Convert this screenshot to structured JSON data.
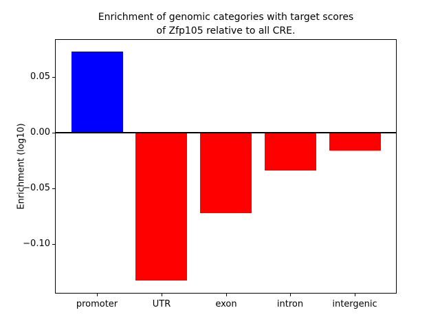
{
  "figure": {
    "background": "#ffffff",
    "text_color": "#000000",
    "axis_color": "#000000"
  },
  "chart_data": {
    "type": "bar",
    "title": "Enrichment of genomic categories with target scores\nof Zfp105 relative to all CRE.",
    "ylabel": "Enrichment (log10)",
    "xlabel": "",
    "categories": [
      "promoter",
      "UTR",
      "exon",
      "intron",
      "intergenic"
    ],
    "values": [
      0.073,
      -0.133,
      -0.072,
      -0.034,
      -0.016
    ],
    "bar_colors": [
      "#0000ff",
      "#ff0000",
      "#ff0000",
      "#ff0000",
      "#ff0000"
    ],
    "positive_color": "#0000ff",
    "negative_color": "#ff0000",
    "bar_width": 0.8,
    "xlim": [
      -0.64,
      4.64
    ],
    "ylim": [
      -0.1437,
      0.0835
    ],
    "yticks": [
      {
        "value": 0.05,
        "label": "0.05"
      },
      {
        "value": 0.0,
        "label": "0.00"
      },
      {
        "value": -0.05,
        "label": "−0.05"
      },
      {
        "value": -0.1,
        "label": "−0.10"
      }
    ],
    "zero_line": true,
    "grid": false,
    "legend": null
  }
}
